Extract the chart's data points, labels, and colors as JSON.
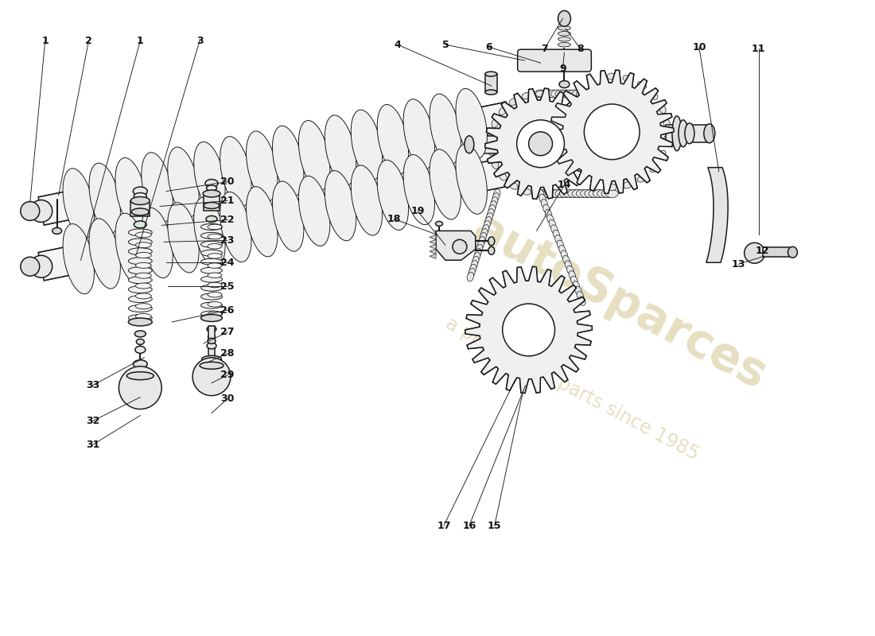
{
  "bg_color": "#ffffff",
  "line_color": "#1a1a1a",
  "wm1": "autoSparces",
  "wm2": "a passion for parts since 1985",
  "wm_color": "#c8b878",
  "wm_alpha": 0.45
}
